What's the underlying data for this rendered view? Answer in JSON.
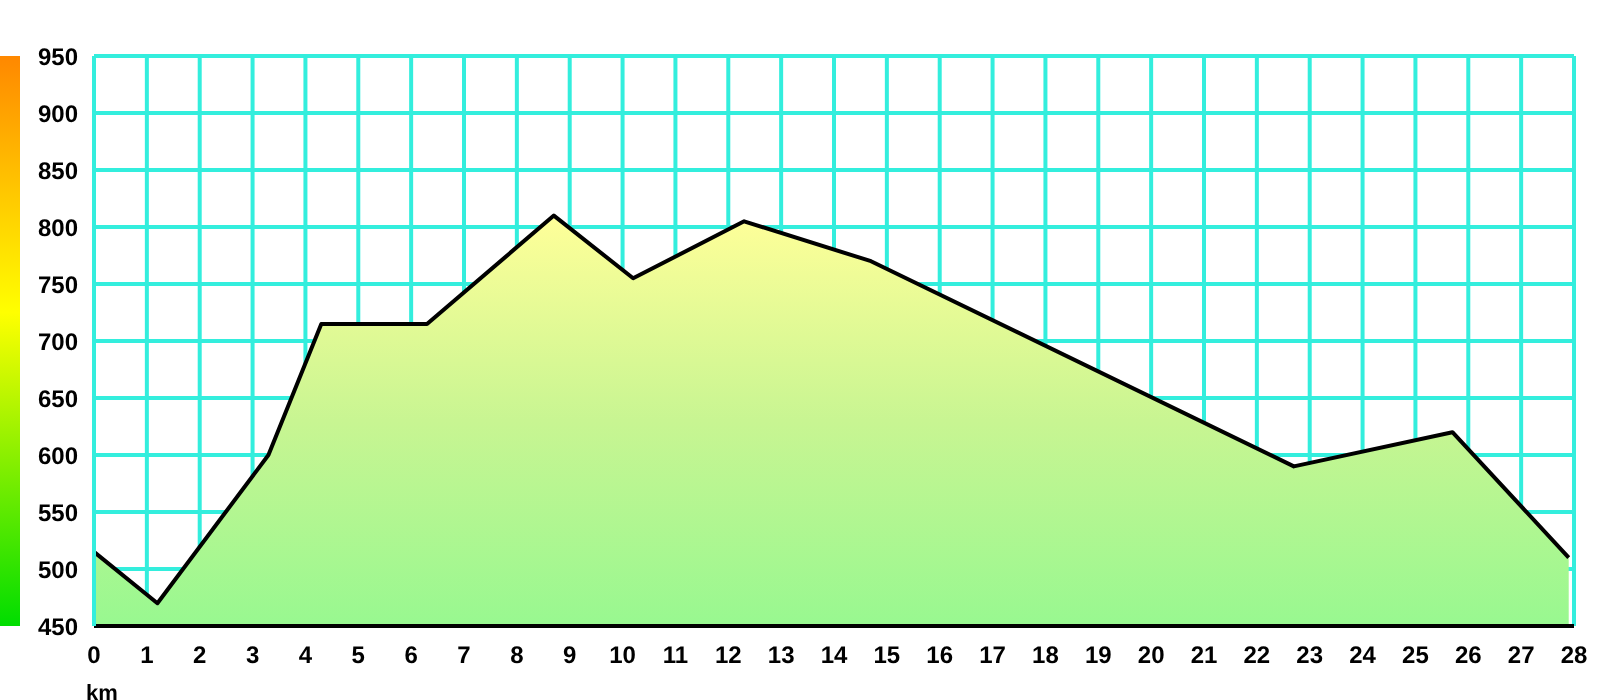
{
  "chart_data": {
    "type": "area",
    "xlabel": "km",
    "series": [
      {
        "color": "#c8f592",
        "x": [
          0,
          1.2,
          3.3,
          4.3,
          6.3,
          8.7,
          10.2,
          12.3,
          14.7,
          22.7,
          25.7,
          27.9
        ],
        "values": [
          515,
          470,
          600,
          715,
          715,
          810,
          755,
          805,
          770,
          590,
          620,
          510
        ]
      }
    ],
    "xlim": [
      0,
      28
    ],
    "xticks": [
      0,
      1,
      2,
      3,
      4,
      5,
      6,
      7,
      8,
      9,
      10,
      11,
      12,
      13,
      14,
      15,
      16,
      17,
      18,
      19,
      20,
      21,
      22,
      23,
      24,
      25,
      26,
      27,
      28
    ],
    "ylim": [
      450,
      950
    ],
    "yticks": [
      450,
      500,
      550,
      600,
      650,
      700,
      750,
      800,
      850,
      900,
      950
    ],
    "grid": true,
    "marker": "none",
    "line_style": "solid"
  }
}
